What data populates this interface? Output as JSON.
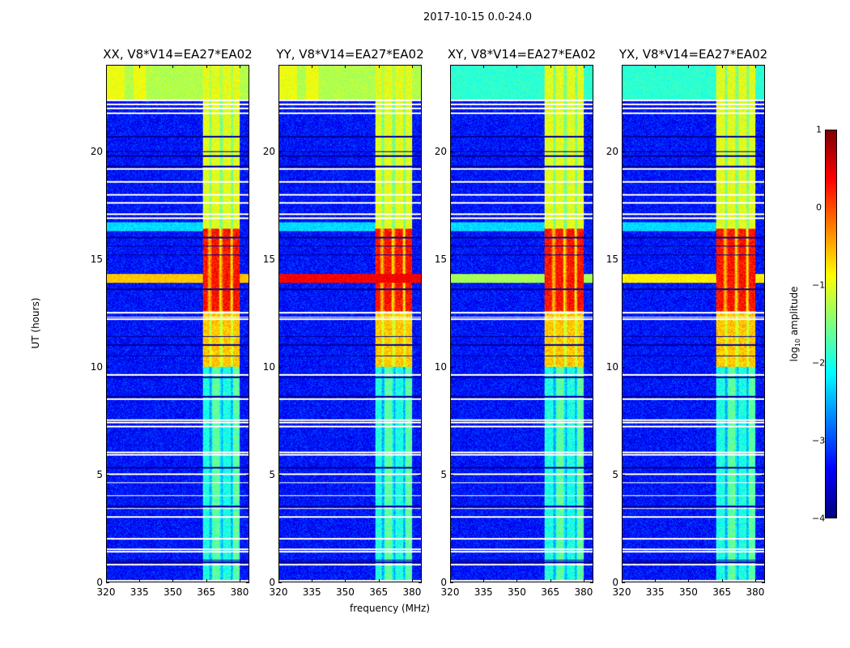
{
  "chart_data": {
    "type": "heatmap",
    "title": "2017-10-15 0.0-24.0",
    "xlabel": "frequency (MHz)",
    "ylabel": "UT (hours)",
    "xlim": [
      320,
      384.4
    ],
    "ylim": [
      0,
      24
    ],
    "xticks": [
      "320",
      "335",
      "350",
      "365",
      "380"
    ],
    "xtick_values": [
      320,
      335,
      350,
      365,
      380
    ],
    "yticks": [
      "0",
      "5",
      "10",
      "15",
      "20"
    ],
    "ytick_values": [
      0,
      5,
      10,
      15,
      20
    ],
    "panels": [
      {
        "title": "XX, V8*V14=EA27*EA02",
        "pol": "XX"
      },
      {
        "title": "YY, V8*V14=EA27*EA02",
        "pol": "YY"
      },
      {
        "title": "XY, V8*V14=EA27*EA02",
        "pol": "XY"
      },
      {
        "title": "YX, V8*V14=EA27*EA02",
        "pol": "YX"
      }
    ],
    "colorbar": {
      "label": "log10 amplitude",
      "label_main": "log",
      "label_sub": "10",
      "label_rest": " amplitude",
      "range": [
        -4,
        1
      ],
      "ticks": [
        "1",
        "0",
        "−1",
        "−2",
        "−3",
        "−4"
      ],
      "tick_values": [
        1,
        0,
        -1,
        -2,
        -3,
        -4
      ],
      "colormap": "jet"
    },
    "features": {
      "background_level": -3.3,
      "bright_band_MHz": [
        363.5,
        380.5
      ],
      "band_levels": [
        {
          "ut": [
            0,
            10
          ],
          "level": -2.0
        },
        {
          "ut": [
            10,
            12.6
          ],
          "level": -0.6
        },
        {
          "ut": [
            12.6,
            16.4
          ],
          "level": 0.3
        },
        {
          "ut": [
            16.4,
            22.4
          ],
          "level": -1.0
        },
        {
          "ut": [
            22.4,
            24
          ],
          "level": -1.0
        }
      ],
      "broadband_rfi_ut": [
        [
          13.9,
          14.3
        ],
        [
          22.4,
          24
        ]
      ],
      "flagged_rows_ut": [
        0.05,
        0.8,
        1.4,
        1.5,
        2.0,
        3.0,
        3.4,
        4.0,
        4.6,
        5.0,
        5.9,
        6.0,
        7.2,
        7.4,
        7.5,
        8.5,
        9.6,
        12.2,
        12.3,
        12.5,
        16.9,
        17.1,
        17.6,
        18.0,
        18.6,
        19.2,
        21.8,
        22.0,
        22.2,
        22.4
      ],
      "low_rows_ut": [
        0.9,
        1.0,
        3.5,
        5.3,
        8.6,
        9.5,
        10.5,
        11.0,
        11.4,
        13.6,
        15.2,
        15.6,
        16.0,
        19.3,
        19.8,
        20.0,
        20.7
      ]
    }
  }
}
